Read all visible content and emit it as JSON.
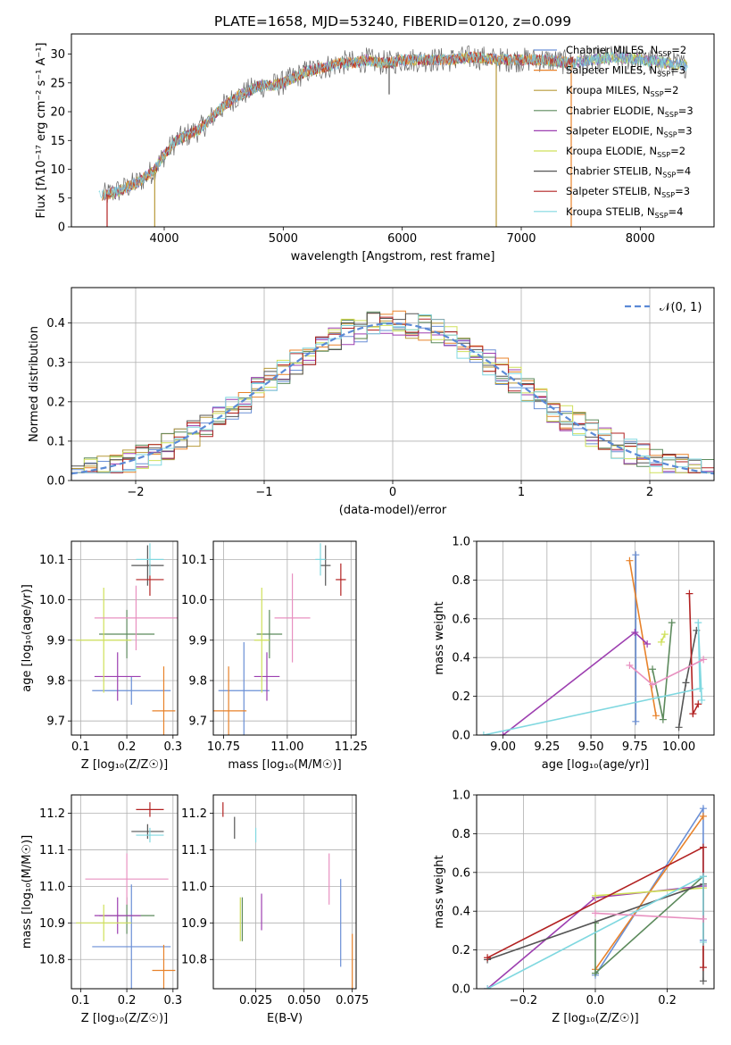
{
  "colors": {
    "series": [
      "#6a8fd6",
      "#e8822a",
      "#b79a3a",
      "#5c8a5c",
      "#9d3fb0",
      "#cfe05a",
      "#555555",
      "#b22222",
      "#80d8e0"
    ],
    "extra": "#e890c0",
    "normal_line": "#5b8ad6"
  },
  "chart_data": [
    {
      "id": "spectrum",
      "type": "line",
      "title": "PLATE=1658, MJD=53240, FIBERID=0120, z=0.099",
      "xlabel": "wavelength [Angstrom, rest frame]",
      "ylabel": "Flux [fλ10⁻¹⁷ erg cm⁻² s⁻¹ A⁻¹]",
      "xlim": [
        3220,
        8620
      ],
      "ylim": [
        0,
        33.5
      ],
      "xticks": [
        4000,
        5000,
        6000,
        7000,
        8000
      ],
      "yticks": [
        0,
        5,
        10,
        15,
        20,
        25,
        30
      ],
      "grid": false,
      "legend_position": "top-right",
      "legend": [
        "Chabrier MILES, N_SSP=2",
        "Salpeter MILES, N_SSP=3",
        "Kroupa MILES, N_SSP=2",
        "Chabrier ELODIE, N_SSP=3",
        "Salpeter ELODIE, N_SSP=3",
        "Kroupa ELODIE, N_SSP=2",
        "Chabrier STELIB, N_SSP=4",
        "Salpeter STELIB, N_SSP=3",
        "Kroupa STELIB, N_SSP=4"
      ],
      "continuum": {
        "x": [
          3500,
          3650,
          3800,
          3920,
          4000,
          4100,
          4200,
          4300,
          4400,
          4500,
          4600,
          4700,
          4800,
          4900,
          5000,
          5100,
          5200,
          5300,
          5400,
          5500,
          5600,
          5700,
          5800,
          5900,
          6000,
          6200,
          6400,
          6600,
          6800,
          7000,
          7200,
          7400,
          7600,
          7800,
          8000,
          8200,
          8400
        ],
        "y": [
          5.5,
          6.5,
          8,
          10,
          12.5,
          15,
          16,
          17,
          19,
          21,
          22.5,
          23.5,
          24.5,
          24.5,
          25,
          26,
          27,
          27.5,
          28,
          28.5,
          28.5,
          29,
          28.5,
          28.5,
          29,
          29,
          29,
          29.5,
          29,
          29,
          29,
          28.5,
          29,
          29.5,
          29,
          28.5,
          28
        ]
      },
      "spikes": [
        {
          "x": 3520,
          "y_low": 0,
          "series": 7
        },
        {
          "x": 3920,
          "y_low": 0,
          "series": 2
        },
        {
          "x": 5890,
          "y_low": 23,
          "series": 6
        },
        {
          "x": 6790,
          "y_low": 0,
          "series": 2
        },
        {
          "x": 7420,
          "y_low": 0,
          "series": 1
        }
      ]
    },
    {
      "id": "residuals",
      "type": "line",
      "xlabel": "(data-model)/error",
      "ylabel": "Normed distribution",
      "xlim": [
        -2.5,
        2.5
      ],
      "ylim": [
        0,
        0.49
      ],
      "xticks": [
        -2,
        -1,
        0,
        1,
        2
      ],
      "yticks": [
        0.0,
        0.1,
        0.2,
        0.3,
        0.4
      ],
      "grid": true,
      "legend_position": "top-right",
      "legend": [
        "𝒩(0, 1)"
      ],
      "bins": {
        "start": -2.5,
        "width": 0.1,
        "count": 50
      }
    },
    {
      "id": "age_vs_Z",
      "type": "scatter",
      "xlabel": "Z [log₁₀(Z/Z☉)]",
      "ylabel": "age  [log₁₀(age/yr)]",
      "xlim": [
        0.08,
        0.31
      ],
      "ylim": [
        9.665,
        10.145
      ],
      "xticks": [
        0.1,
        0.2,
        0.3
      ],
      "yticks": [
        9.7,
        9.8,
        9.9,
        10.0,
        10.1
      ],
      "grid": true,
      "points": [
        {
          "x": 0.21,
          "y": 9.775,
          "xerr": 0.085,
          "yerr": 0.035,
          "series": 0
        },
        {
          "x": 0.28,
          "y": 9.725,
          "xerr": 0.025,
          "yerr": 0.11,
          "series": 1
        },
        {
          "x": 0.2,
          "y": 9.915,
          "xerr": 0.06,
          "yerr": 0.06,
          "series": 3
        },
        {
          "x": 0.18,
          "y": 9.81,
          "xerr": 0.05,
          "yerr": 0.06,
          "series": 4
        },
        {
          "x": 0.15,
          "y": 9.9,
          "xerr": 0.06,
          "yerr": 0.13,
          "series": 5
        },
        {
          "x": 0.245,
          "y": 10.085,
          "xerr": 0.035,
          "yerr": 0.05,
          "series": 6
        },
        {
          "x": 0.25,
          "y": 10.05,
          "xerr": 0.03,
          "yerr": 0.04,
          "series": 7
        },
        {
          "x": 0.25,
          "y": 10.1,
          "xerr": 0.03,
          "yerr": 0.04,
          "series": 8
        },
        {
          "x": 0.22,
          "y": 9.955,
          "xerr": 0.09,
          "yerr": 0.08,
          "series": "extra"
        }
      ]
    },
    {
      "id": "age_vs_mass",
      "type": "scatter",
      "xlabel": "mass [log₁₀(M/M☉)]",
      "ylabel": "",
      "xlim": [
        10.71,
        11.27
      ],
      "ylim": [
        9.665,
        10.145
      ],
      "xticks": [
        10.75,
        11.0,
        11.25
      ],
      "yticks": [
        9.7,
        9.8,
        9.9,
        10.0,
        10.1
      ],
      "grid": true,
      "points": [
        {
          "x": 10.83,
          "y": 9.775,
          "xerr": 0.1,
          "yerr": 0.12,
          "series": 0
        },
        {
          "x": 10.77,
          "y": 9.725,
          "xerr": 0.07,
          "yerr": 0.11,
          "series": 1
        },
        {
          "x": 10.93,
          "y": 9.915,
          "xerr": 0.05,
          "yerr": 0.06,
          "series": 3
        },
        {
          "x": 10.92,
          "y": 9.81,
          "xerr": 0.05,
          "yerr": 0.06,
          "series": 4
        },
        {
          "x": 10.9,
          "y": 9.9,
          "xerr": 0.03,
          "yerr": 0.13,
          "series": 5
        },
        {
          "x": 11.15,
          "y": 10.085,
          "xerr": 0.02,
          "yerr": 0.05,
          "series": 6
        },
        {
          "x": 11.21,
          "y": 10.05,
          "xerr": 0.02,
          "yerr": 0.04,
          "series": 7
        },
        {
          "x": 11.13,
          "y": 10.1,
          "xerr": 0.02,
          "yerr": 0.04,
          "series": 8
        },
        {
          "x": 11.02,
          "y": 9.955,
          "xerr": 0.07,
          "yerr": 0.11,
          "series": "extra"
        }
      ]
    },
    {
      "id": "weight_vs_age",
      "type": "line",
      "xlabel": "age  [log₁₀(age/yr)]",
      "ylabel": "mass weight",
      "xlim": [
        8.85,
        10.2
      ],
      "ylim": [
        0,
        1.0
      ],
      "xticks": [
        9.0,
        9.25,
        9.5,
        9.75,
        10.0
      ],
      "yticks": [
        0.0,
        0.2,
        0.4,
        0.6,
        0.8,
        1.0
      ],
      "grid": true,
      "series": [
        {
          "series": 0,
          "x": [
            9.755,
            9.755
          ],
          "y": [
            0.07,
            0.93
          ]
        },
        {
          "series": 1,
          "x": [
            9.72,
            9.87
          ],
          "y": [
            0.9,
            0.1
          ]
        },
        {
          "series": 3,
          "x": [
            9.85,
            9.91,
            9.96
          ],
          "y": [
            0.34,
            0.08,
            0.58
          ]
        },
        {
          "series": 4,
          "x": [
            9.0,
            9.75,
            9.82
          ],
          "y": [
            0.0,
            0.53,
            0.47
          ]
        },
        {
          "series": 5,
          "x": [
            9.9,
            9.92
          ],
          "y": [
            0.48,
            0.52
          ]
        },
        {
          "series": 6,
          "x": [
            10.0,
            10.04,
            10.1
          ],
          "y": [
            0.04,
            0.27,
            0.54
          ]
        },
        {
          "series": 7,
          "x": [
            10.06,
            10.08,
            10.11
          ],
          "y": [
            0.73,
            0.11,
            0.16
          ]
        },
        {
          "series": 8,
          "x": [
            8.89,
            10.12,
            10.11,
            10.13
          ],
          "y": [
            0.0,
            0.24,
            0.58,
            0.18
          ]
        },
        {
          "series": "extra",
          "x": [
            9.72,
            9.85,
            10.14
          ],
          "y": [
            0.36,
            0.26,
            0.39
          ]
        }
      ]
    },
    {
      "id": "mass_vs_Z",
      "type": "scatter",
      "xlabel": "Z [log₁₀(Z/Z☉)]",
      "ylabel": "mass [log₁₀(M/M☉)]",
      "xlim": [
        0.08,
        0.31
      ],
      "ylim": [
        10.72,
        11.25
      ],
      "xticks": [
        0.1,
        0.2,
        0.3
      ],
      "yticks": [
        10.8,
        10.9,
        11.0,
        11.1,
        11.2
      ],
      "grid": true,
      "points": [
        {
          "x": 0.21,
          "y": 10.835,
          "xerr": 0.085,
          "yerr": 0.17,
          "series": 0
        },
        {
          "x": 0.28,
          "y": 10.77,
          "xerr": 0.025,
          "yerr": 0.07,
          "series": 1
        },
        {
          "x": 0.2,
          "y": 10.92,
          "xerr": 0.06,
          "yerr": 0.05,
          "series": 3
        },
        {
          "x": 0.18,
          "y": 10.92,
          "xerr": 0.05,
          "yerr": 0.05,
          "series": 4
        },
        {
          "x": 0.15,
          "y": 10.9,
          "xerr": 0.06,
          "yerr": 0.05,
          "series": 5
        },
        {
          "x": 0.245,
          "y": 11.15,
          "xerr": 0.035,
          "yerr": 0.02,
          "series": 6
        },
        {
          "x": 0.25,
          "y": 11.21,
          "xerr": 0.03,
          "yerr": 0.02,
          "series": 7
        },
        {
          "x": 0.25,
          "y": 11.14,
          "xerr": 0.03,
          "yerr": 0.02,
          "series": 8
        },
        {
          "x": 0.2,
          "y": 11.02,
          "xerr": 0.09,
          "yerr": 0.07,
          "series": "extra"
        }
      ]
    },
    {
      "id": "mass_vs_ebv",
      "type": "scatter",
      "xlabel": "E(B-V)",
      "ylabel": "",
      "xlim": [
        0.003,
        0.077
      ],
      "ylim": [
        10.72,
        11.25
      ],
      "xticks": [
        0.025,
        0.05,
        0.075
      ],
      "yticks": [
        10.8,
        10.9,
        11.0,
        11.1,
        11.2
      ],
      "grid": true,
      "points": [
        {
          "x": 0.069,
          "y": 10.9,
          "xerr": 0,
          "yerr": 0.12,
          "series": 0
        },
        {
          "x": 0.075,
          "y": 10.77,
          "xerr": 0,
          "yerr": 0.1,
          "series": 1
        },
        {
          "x": 0.018,
          "y": 10.91,
          "xerr": 0,
          "yerr": 0.06,
          "series": 3
        },
        {
          "x": 0.028,
          "y": 10.93,
          "xerr": 0,
          "yerr": 0.05,
          "series": 4
        },
        {
          "x": 0.017,
          "y": 10.91,
          "xerr": 0,
          "yerr": 0.06,
          "series": 5
        },
        {
          "x": 0.014,
          "y": 11.16,
          "xerr": 0,
          "yerr": 0.03,
          "series": 6
        },
        {
          "x": 0.008,
          "y": 11.21,
          "xerr": 0,
          "yerr": 0.02,
          "series": 7
        },
        {
          "x": 0.025,
          "y": 11.14,
          "xerr": 0,
          "yerr": 0.02,
          "series": 8
        },
        {
          "x": 0.063,
          "y": 11.02,
          "xerr": 0,
          "yerr": 0.07,
          "series": "extra"
        }
      ]
    },
    {
      "id": "weight_vs_Z",
      "type": "line",
      "xlabel": "Z [log₁₀(Z/Z☉)]",
      "ylabel": "mass weight",
      "xlim": [
        -0.33,
        0.33
      ],
      "ylim": [
        0,
        1.0
      ],
      "xticks": [
        -0.2,
        0.0,
        0.2
      ],
      "yticks": [
        0.0,
        0.2,
        0.4,
        0.6,
        0.8,
        1.0
      ],
      "grid": true,
      "series": [
        {
          "series": 0,
          "x": [
            0.0,
            0.3,
            0.3
          ],
          "y": [
            0.07,
            0.93,
            0.25
          ]
        },
        {
          "series": 1,
          "x": [
            0.0,
            0.3
          ],
          "y": [
            0.1,
            0.89
          ]
        },
        {
          "series": 3,
          "x": [
            0.0,
            0.0,
            0.3
          ],
          "y": [
            0.34,
            0.08,
            0.58
          ]
        },
        {
          "series": 4,
          "x": [
            -0.3,
            0.0,
            0.3
          ],
          "y": [
            0.0,
            0.47,
            0.53
          ]
        },
        {
          "series": 5,
          "x": [
            0.0,
            0.3
          ],
          "y": [
            0.48,
            0.52
          ]
        },
        {
          "series": 6,
          "x": [
            -0.3,
            0.3,
            0.3
          ],
          "y": [
            0.15,
            0.54,
            0.04
          ]
        },
        {
          "series": 7,
          "x": [
            -0.3,
            0.3,
            0.3
          ],
          "y": [
            0.16,
            0.73,
            0.11
          ]
        },
        {
          "series": 8,
          "x": [
            -0.3,
            0.3,
            0.3
          ],
          "y": [
            0.0,
            0.58,
            0.24
          ]
        },
        {
          "series": "extra",
          "x": [
            0.0,
            0.3
          ],
          "y": [
            0.39,
            0.36
          ]
        }
      ]
    }
  ]
}
